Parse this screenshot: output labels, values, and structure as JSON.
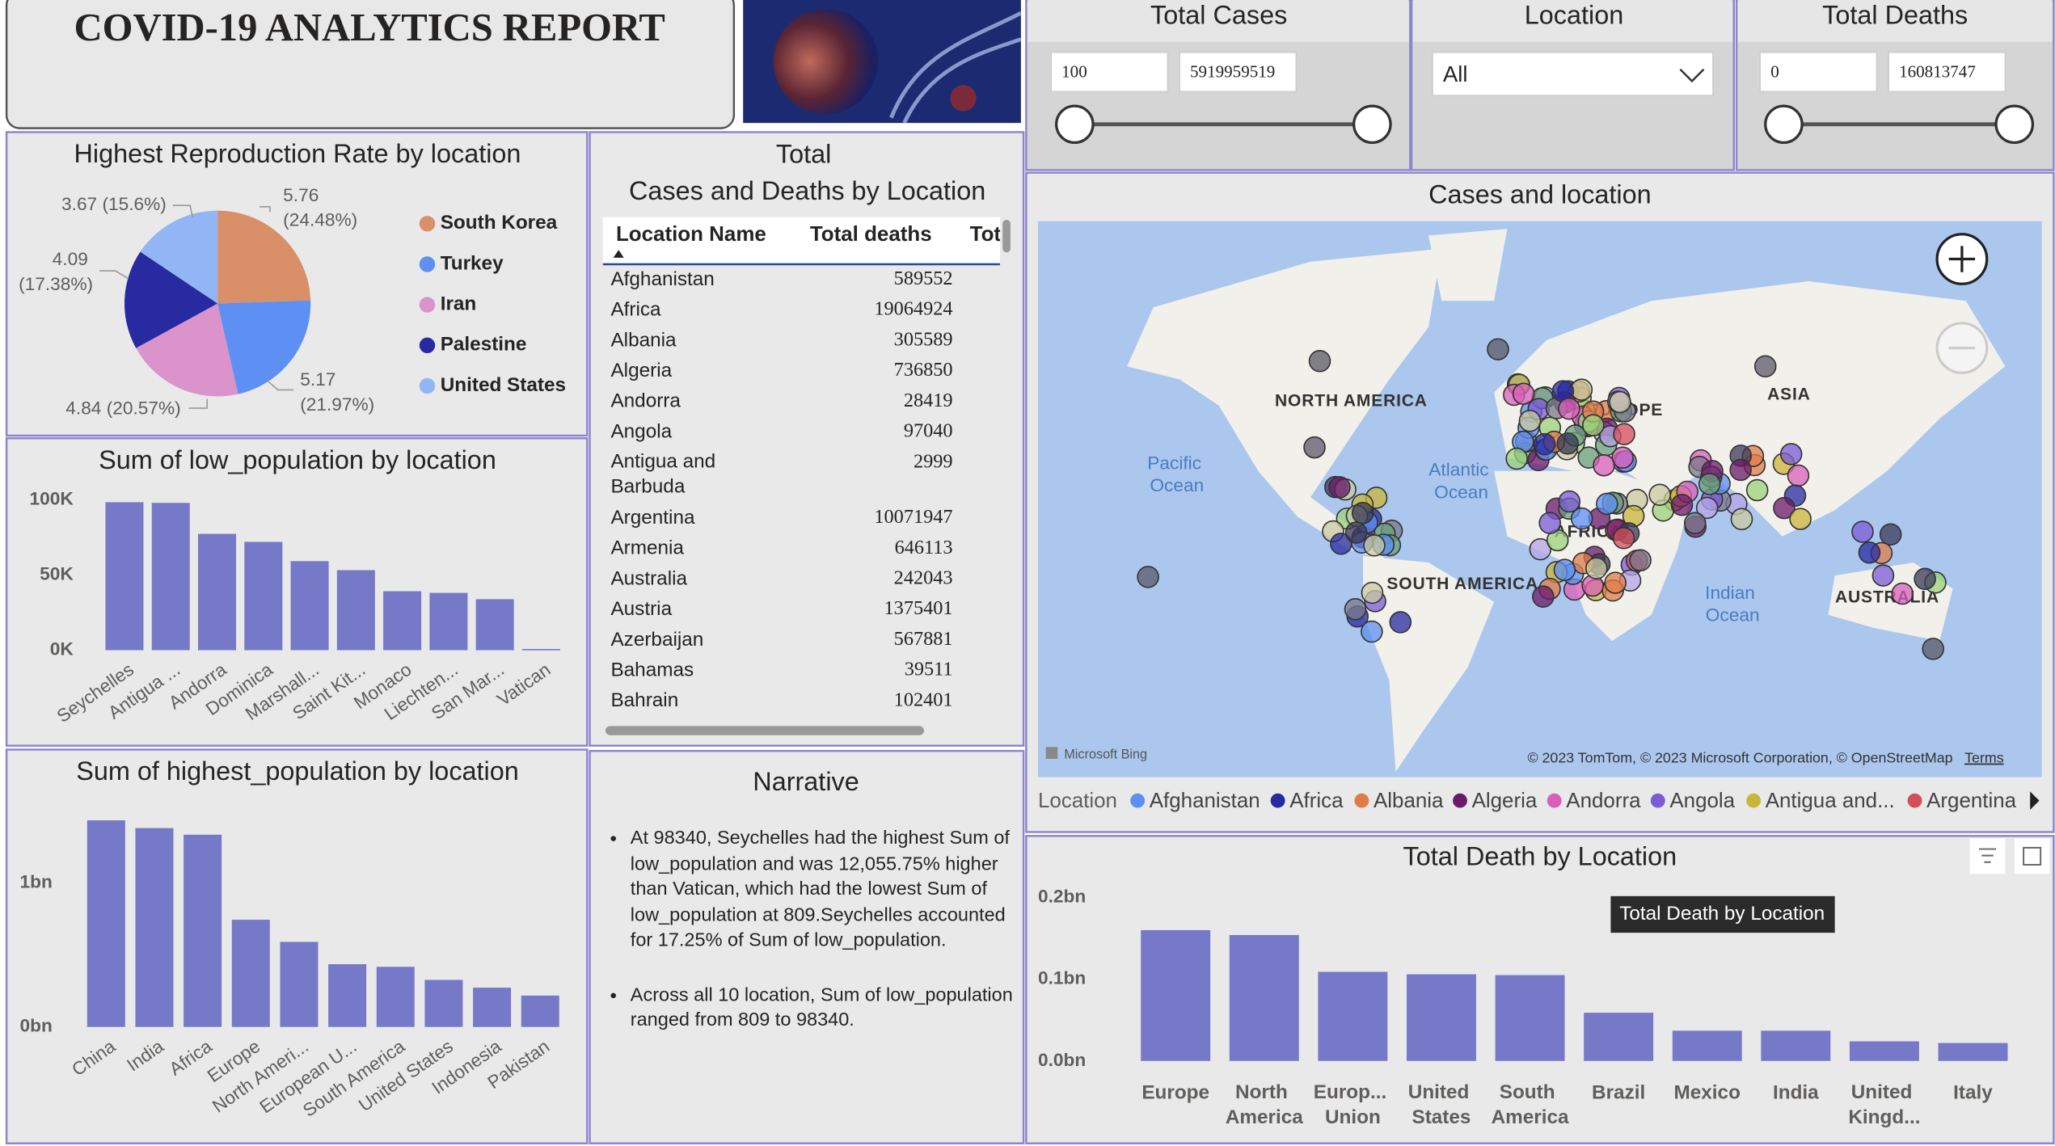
{
  "header": {
    "title": "COVID-19 ANALYTICS REPORT"
  },
  "slicers": [
    {
      "title": "Total Cases",
      "min": 100,
      "max": 5919959519
    },
    {
      "title": "Location",
      "selected": "All"
    },
    {
      "title": "Total Deaths",
      "min": 0,
      "max": 160813747
    }
  ],
  "chart_data": [
    {
      "type": "pie",
      "title": "Highest Reproduction Rate by location",
      "categories": [
        "South Korea",
        "Turkey",
        "Iran",
        "Palestine",
        "United States"
      ],
      "values": [
        5.76,
        5.17,
        4.84,
        4.09,
        3.67
      ],
      "value_labels": [
        "5.76 (24.48%)",
        "5.17 (21.97%)",
        "4.84 (20.57%)",
        "4.09 (17.38%)",
        "3.67 (15.6%)"
      ],
      "colors": [
        "#d98f68",
        "#5e8ff2",
        "#da93cb",
        "#272aa0",
        "#92b6f5"
      ]
    },
    {
      "type": "bar",
      "title": "Sum of low_population by location",
      "categories": [
        "Seychelles",
        "Antigua ...",
        "Andorra",
        "Dominica",
        "Marshall...",
        "Saint Kit...",
        "Monaco",
        "Liechten...",
        "San Mar...",
        "Vatican"
      ],
      "values": [
        98340,
        97900,
        77300,
        72000,
        59200,
        53200,
        39200,
        38100,
        33900,
        809
      ],
      "color": "#7579c8",
      "ylim": [
        0,
        105000
      ],
      "yticks": [
        {
          "value": 0,
          "label": "0K"
        },
        {
          "value": 50000,
          "label": "50K"
        },
        {
          "value": 100000,
          "label": "100K"
        }
      ],
      "grid": false
    },
    {
      "type": "bar",
      "title": "Sum of highest_population by location",
      "categories": [
        "China",
        "India",
        "Africa",
        "Europe",
        "North Ameri...",
        "European U...",
        "South America",
        "United States",
        "Indonesia",
        "Pakistan"
      ],
      "values": [
        1436000000,
        1382000000,
        1336000000,
        745000000,
        591000000,
        436000000,
        418000000,
        327000000,
        273000000,
        218000000
      ],
      "color": "#7579c8",
      "ylim": [
        0,
        1500000000
      ],
      "yticks": [
        {
          "value": 0,
          "label": "0bn"
        },
        {
          "value": 1000000000,
          "label": "1bn"
        }
      ],
      "grid": false
    },
    {
      "type": "bar",
      "title": "Total Death by Location",
      "categories": [
        "Europe",
        "North America",
        "Europ... Union",
        "United States",
        "South America",
        "Brazil",
        "Mexico",
        "India",
        "United Kingd...",
        "Italy"
      ],
      "values": [
        160000000,
        154000000,
        109000000,
        106000000,
        105000000,
        59000000,
        37000000,
        37000000,
        24000000,
        22000000
      ],
      "color": "#7579c8",
      "ylim": [
        0,
        210000000
      ],
      "yticks": [
        {
          "value": 0,
          "label": "0.0bn"
        },
        {
          "value": 100000000,
          "label": "0.1bn"
        },
        {
          "value": 200000000,
          "label": "0.2bn"
        }
      ],
      "grid": false
    }
  ],
  "tooltip": "Total Death by Location",
  "table": {
    "title": "Total Cases and Deaths by Location",
    "columns": [
      "Location Name",
      "Total deaths",
      "Tot"
    ],
    "rows": [
      [
        "Afghanistan",
        589552
      ],
      [
        "Africa",
        19064924
      ],
      [
        "Albania",
        305589
      ],
      [
        "Algeria",
        736850
      ],
      [
        "Andorra",
        28419
      ],
      [
        "Angola",
        97040
      ],
      [
        "Antigua and Barbuda",
        2999
      ],
      [
        "Argentina",
        10071947
      ],
      [
        "Armenia",
        646113
      ],
      [
        "Australia",
        242043
      ],
      [
        "Austria",
        1375401
      ],
      [
        "Azerbaijan",
        567881
      ],
      [
        "Bahamas",
        39511
      ],
      [
        "Bahrain",
        102401
      ]
    ]
  },
  "narrative": {
    "title": "Narrative",
    "bullets": [
      "At 98340, Seychelles had the highest Sum of low_population and was 12,055.75% higher than Vatican, which had the lowest Sum of low_population at 809.Seychelles accounted for 17.25% of Sum of low_population.",
      "Across all 10 location, Sum of low_population ranged from 809 to 98340."
    ]
  },
  "map": {
    "title": "Cases and location",
    "labels": [
      "NORTH AMERICA",
      "EUROPE",
      "AFRICA",
      "ASIA",
      "SOUTH AMERICA",
      "AUSTRALIA",
      "Pacific Ocean",
      "Atlantic Ocean",
      "Indian Ocean"
    ],
    "provider": "Microsoft Bing",
    "attribution": "© 2023 TomTom, © 2023 Microsoft Corporation, © OpenStreetMap",
    "terms": "Terms",
    "legend_title": "Location",
    "legend": [
      {
        "name": "Afghanistan",
        "color": "#5e8ff2"
      },
      {
        "name": "Africa",
        "color": "#272aa0"
      },
      {
        "name": "Albania",
        "color": "#e07c4a"
      },
      {
        "name": "Algeria",
        "color": "#6b1a6b"
      },
      {
        "name": "Andorra",
        "color": "#d95fbb"
      },
      {
        "name": "Angola",
        "color": "#7b5bd6"
      },
      {
        "name": "Antigua and...",
        "color": "#c9b53a"
      },
      {
        "name": "Argentina",
        "color": "#d44e5a"
      }
    ]
  }
}
